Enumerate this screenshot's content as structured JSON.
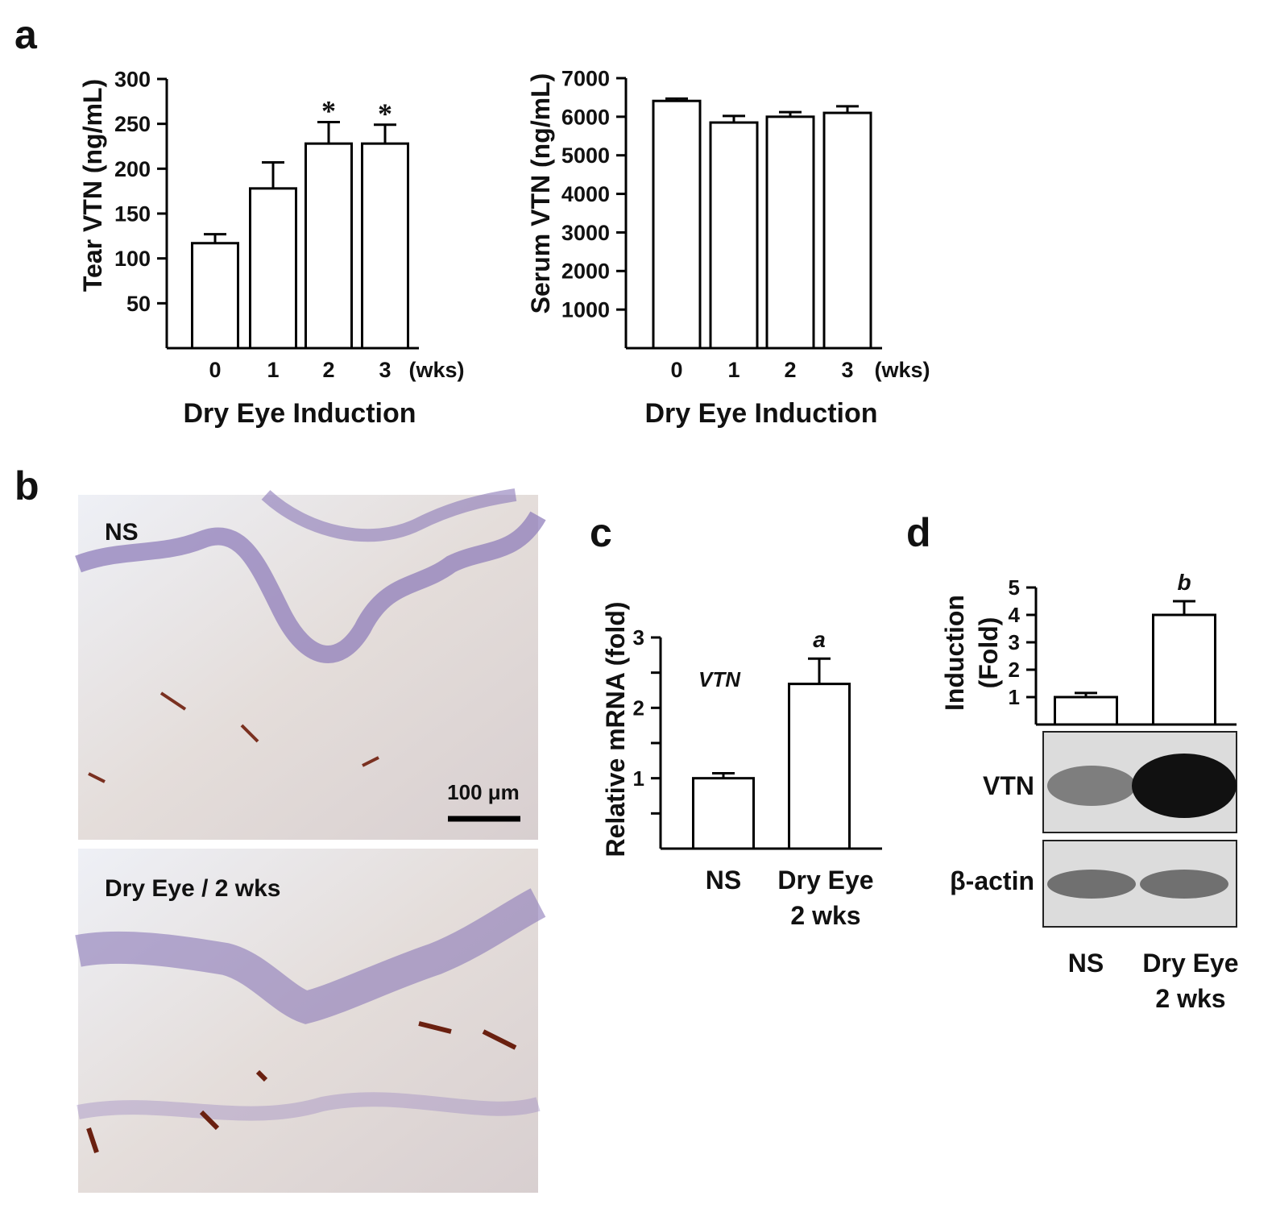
{
  "panel_labels": [
    "a",
    "b",
    "c",
    "d"
  ],
  "micrographs": [
    {
      "label": "NS",
      "scale_bar": "100 μm"
    },
    {
      "label": "Dry Eye / 2 wks"
    }
  ],
  "chart_data": [
    {
      "type": "bar",
      "ylabel": "Tear VTN (ng/mL)",
      "xlabel": "Dry Eye Induction",
      "categories": [
        "0",
        "1",
        "2",
        "3"
      ],
      "x_unit": "(wks)",
      "values": [
        117,
        178,
        228,
        228
      ],
      "errors": [
        10,
        29,
        24,
        21
      ],
      "markers": [
        null,
        null,
        "*",
        "*"
      ],
      "ylim": [
        0,
        300
      ],
      "yticks": [
        50,
        100,
        150,
        200,
        250,
        300
      ],
      "color": "#ffffff"
    },
    {
      "type": "bar",
      "ylabel": "Serum  VTN (ng/mL)",
      "xlabel": "Dry Eye Induction",
      "categories": [
        "0",
        "1",
        "2",
        "3"
      ],
      "x_unit": "(wks)",
      "values": [
        6410,
        5850,
        6000,
        6100
      ],
      "errors": [
        60,
        170,
        120,
        170
      ],
      "ylim": [
        0,
        7000
      ],
      "yticks": [
        1000,
        2000,
        3000,
        4000,
        5000,
        6000,
        7000
      ],
      "color": "#ffffff"
    },
    {
      "type": "bar",
      "ylabel": "Relative mRNA (fold)",
      "annotation": "VTN",
      "categories": [
        [
          "NS"
        ],
        [
          "Dry Eye",
          "2 wks"
        ]
      ],
      "values": [
        1.0,
        2.34
      ],
      "errors": [
        0.07,
        0.36
      ],
      "markers": [
        null,
        "a"
      ],
      "ylim": [
        0,
        3
      ],
      "yticks": [
        1,
        2,
        3
      ],
      "minor_yticks": [
        0.5,
        1.5,
        2.5
      ],
      "color": "#ffffff"
    },
    {
      "type": "bar",
      "ylabel": [
        "Induction",
        "(Fold)"
      ],
      "categories": [
        [
          "NS"
        ],
        [
          "Dry Eye",
          "2 wks"
        ]
      ],
      "values": [
        1.0,
        4.0
      ],
      "errors": [
        0.15,
        0.5
      ],
      "markers": [
        null,
        "b"
      ],
      "ylim": [
        0,
        5
      ],
      "yticks": [
        1,
        2,
        3,
        4,
        5
      ],
      "color": "#ffffff",
      "blot_rows": [
        "VTN",
        "β-actin"
      ]
    }
  ]
}
